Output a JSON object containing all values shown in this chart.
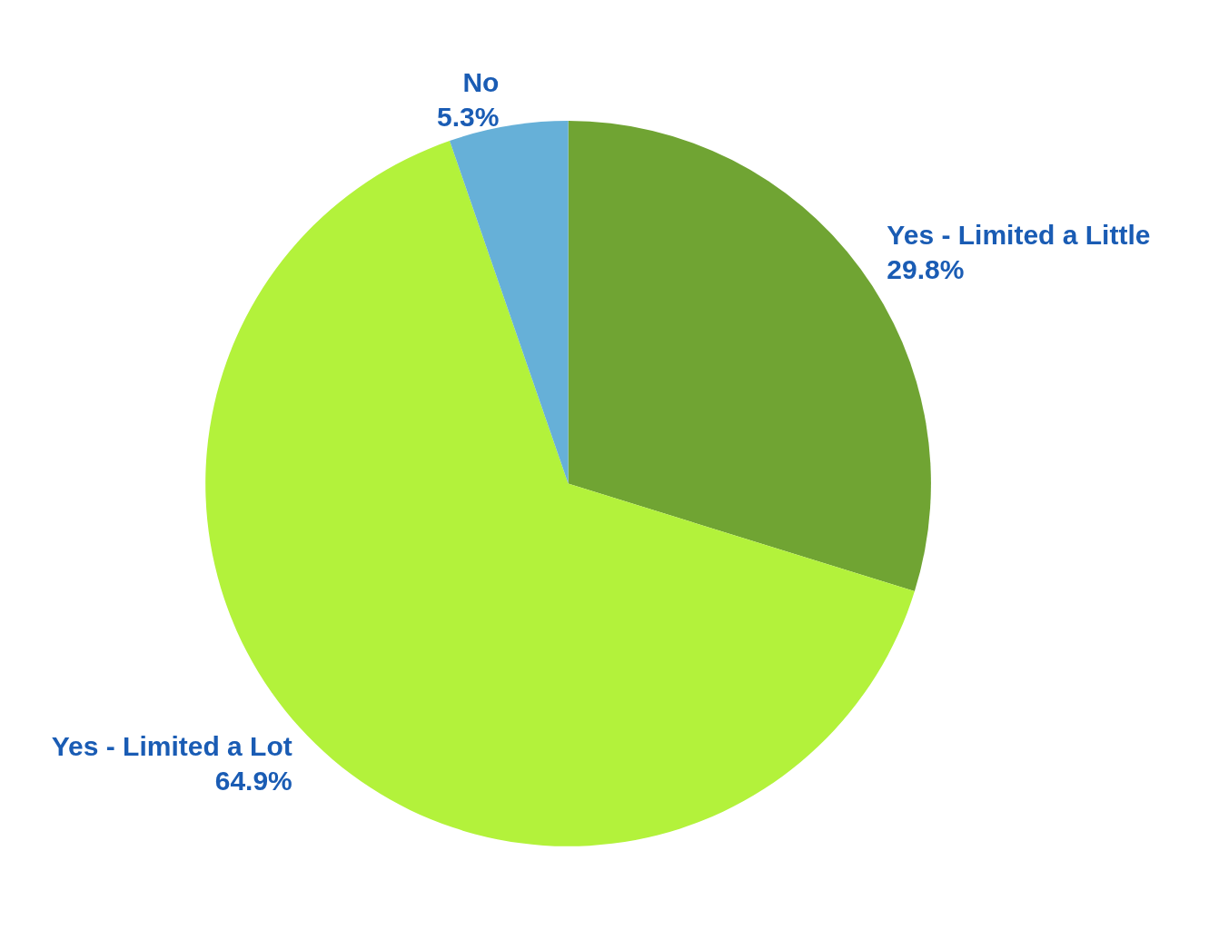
{
  "chart_data": {
    "type": "pie",
    "categories": [
      "Yes - Limited a Little",
      "Yes - Limited a Lot",
      "No"
    ],
    "values": [
      29.8,
      64.9,
      5.3
    ],
    "value_labels": [
      "29.8%",
      "64.9%",
      "5.3%"
    ],
    "colors": [
      "#70a433",
      "#b3f23b",
      "#66b0d8"
    ],
    "legend": false
  }
}
